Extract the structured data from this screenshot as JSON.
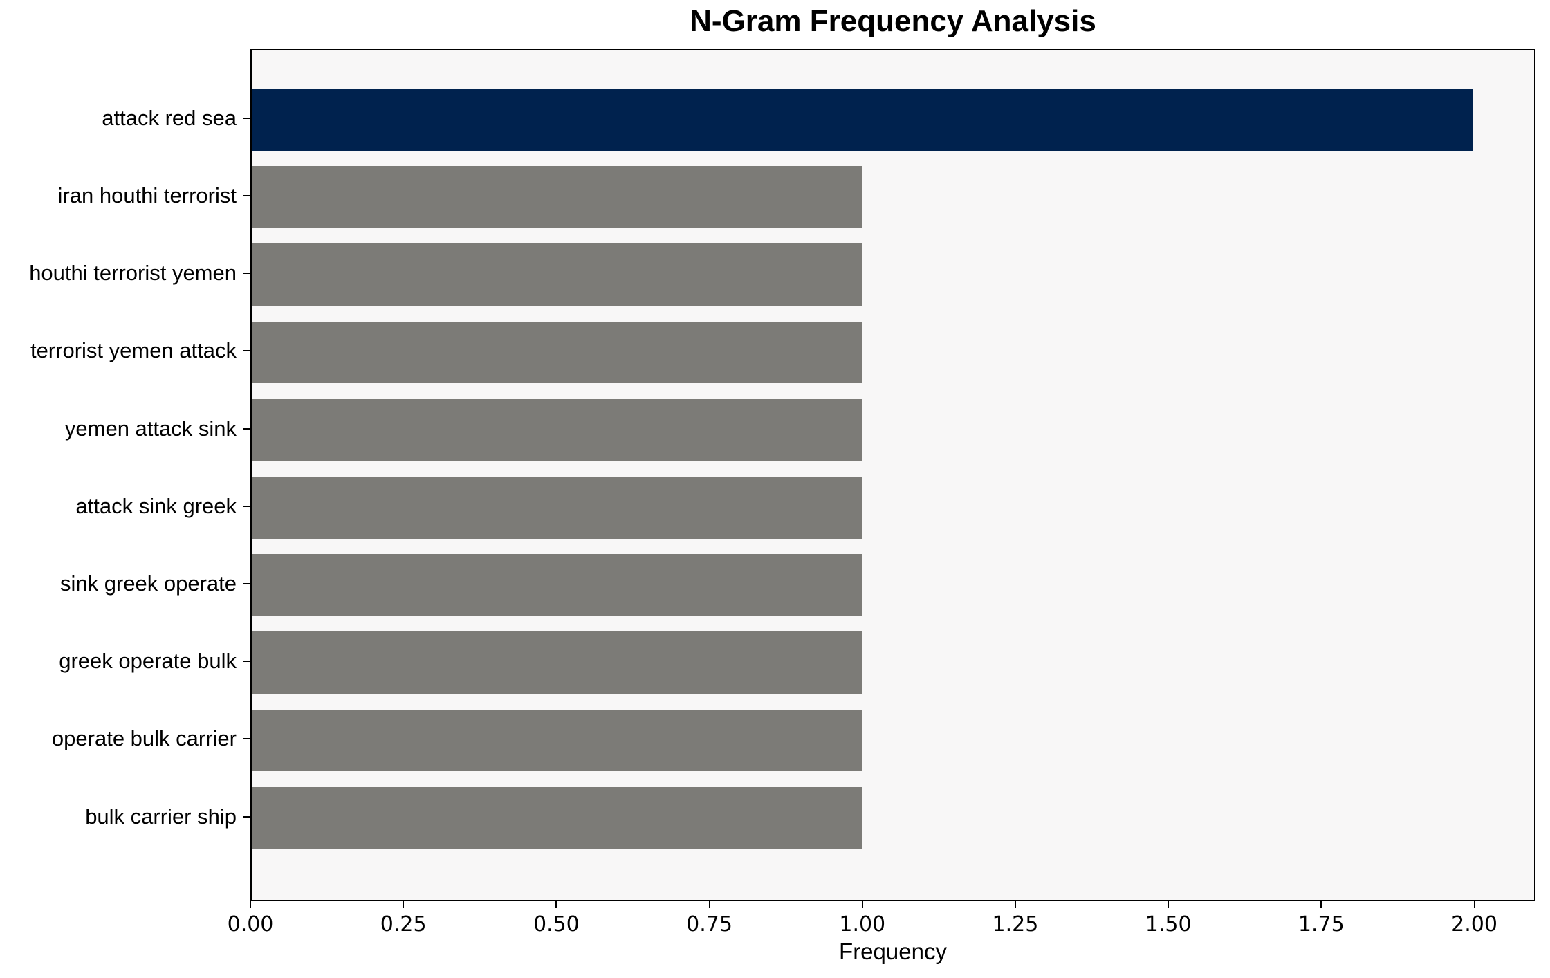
{
  "figure": {
    "title": "N-Gram Frequency Analysis",
    "xlabel": "Frequency"
  },
  "chart_data": {
    "type": "bar",
    "orientation": "horizontal",
    "title": "N-Gram Frequency Analysis",
    "xlabel": "Frequency",
    "ylabel": "",
    "categories": [
      "attack red sea",
      "iran houthi terrorist",
      "houthi terrorist yemen",
      "terrorist yemen attack",
      "yemen attack sink",
      "attack sink greek",
      "sink greek operate",
      "greek operate bulk",
      "operate bulk carrier",
      "bulk carrier ship"
    ],
    "values": [
      2,
      1,
      1,
      1,
      1,
      1,
      1,
      1,
      1,
      1
    ],
    "bar_colors": [
      "#00224e",
      "#7c7b77",
      "#7c7b77",
      "#7c7b77",
      "#7c7b77",
      "#7c7b77",
      "#7c7b77",
      "#7c7b77",
      "#7c7b77",
      "#7c7b77"
    ],
    "colors": {
      "highlight": "#00224e",
      "default": "#7c7b77",
      "plot_background": "#f8f7f7",
      "figure_background": "#ffffff",
      "spine": "#000000",
      "text": "#000000"
    },
    "xlim": [
      0,
      2.1
    ],
    "xticks": [
      0.0,
      0.25,
      0.5,
      0.75,
      1.0,
      1.25,
      1.5,
      1.75,
      2.0
    ],
    "xtick_labels": [
      "0.00",
      "0.25",
      "0.50",
      "0.75",
      "1.00",
      "1.25",
      "1.50",
      "1.75",
      "2.00"
    ],
    "bar_height_fraction": 0.8,
    "y_margin_units": 0.49,
    "grid": false,
    "legend": null
  }
}
